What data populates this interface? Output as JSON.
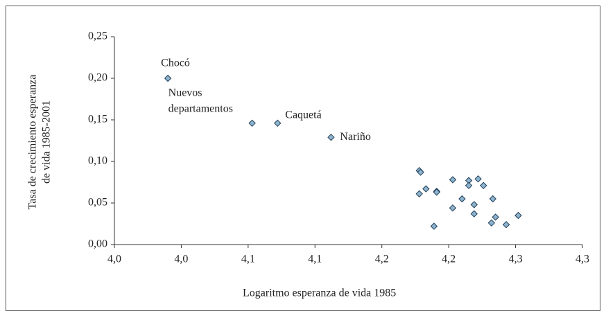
{
  "chart_data": {
    "type": "scatter",
    "xlabel": "Logaritmo esperanza de vida 1985",
    "ylabel": [
      "Tasa de crecimiento esperanza",
      "de vida 1985-2001"
    ],
    "xlim": [
      3.95,
      4.3
    ],
    "xticks": [
      {
        "value": 3.95,
        "label": "4,0"
      },
      {
        "value": 4.0,
        "label": "4,0"
      },
      {
        "value": 4.05,
        "label": "4,1"
      },
      {
        "value": 4.1,
        "label": "4,1"
      },
      {
        "value": 4.15,
        "label": "4,2"
      },
      {
        "value": 4.2,
        "label": "4,2"
      },
      {
        "value": 4.25,
        "label": "4,3"
      },
      {
        "value": 4.3,
        "label": "4,3"
      }
    ],
    "ylim": [
      0,
      0.25
    ],
    "yticks": [
      {
        "value": 0,
        "label": "0,00"
      },
      {
        "value": 0.05,
        "label": "0,05"
      },
      {
        "value": 0.1,
        "label": "0,10"
      },
      {
        "value": 0.15,
        "label": "0,15"
      },
      {
        "value": 0.2,
        "label": "0,20"
      },
      {
        "value": 0.25,
        "label": "0,25"
      }
    ],
    "color": "#8db4cc",
    "x": [
      3.99,
      4.053,
      4.072,
      4.112,
      4.178,
      4.179,
      4.178,
      4.183,
      4.191,
      4.191,
      4.189,
      4.203,
      4.203,
      4.21,
      4.215,
      4.215,
      4.222,
      4.219,
      4.219,
      4.226,
      4.233,
      4.232,
      4.235,
      4.243,
      4.252
    ],
    "values": [
      0.2,
      0.146,
      0.146,
      0.129,
      0.089,
      0.087,
      0.061,
      0.067,
      0.064,
      0.063,
      0.022,
      0.078,
      0.044,
      0.055,
      0.077,
      0.071,
      0.079,
      0.048,
      0.037,
      0.071,
      0.055,
      0.026,
      0.033,
      0.024,
      0.035
    ],
    "annotations": [
      "Chocó",
      "Nuevos",
      "departamentos",
      "Caquetá",
      "Nariño"
    ]
  }
}
